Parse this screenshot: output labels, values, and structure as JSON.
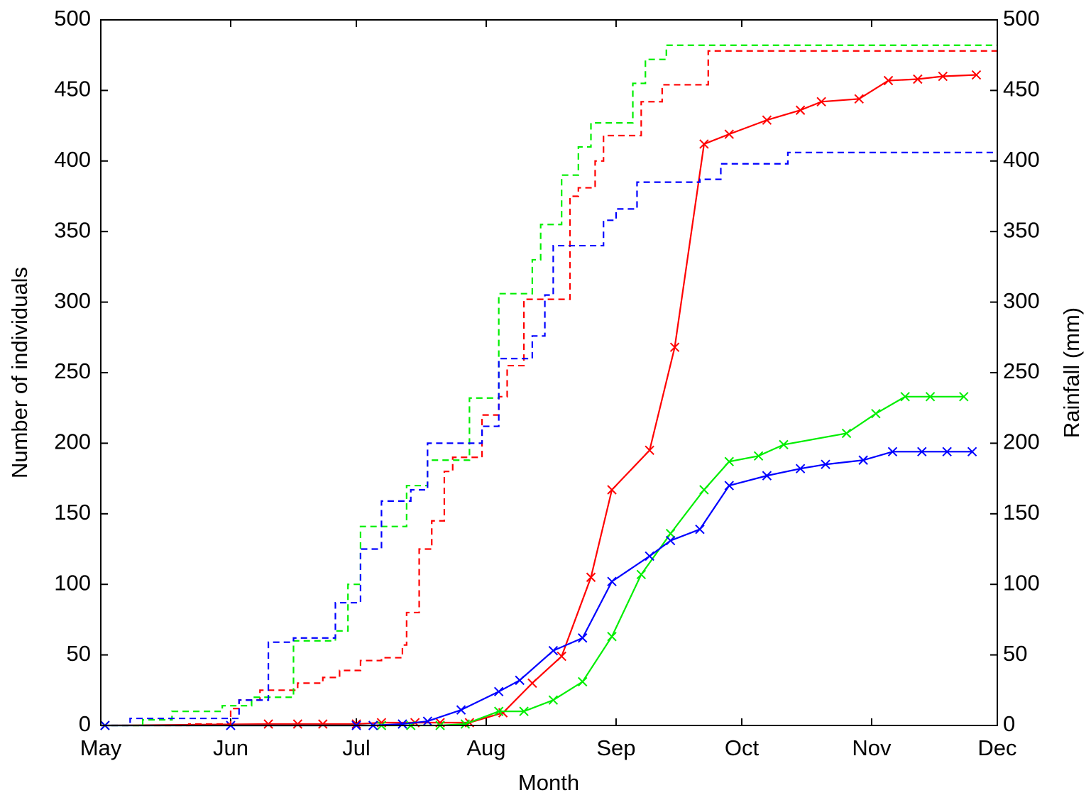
{
  "chart_data": {
    "type": "line",
    "xlabel": "Month",
    "ylabel": "Number of individuals",
    "y2label": "Rainfall (mm)",
    "xlim": [
      0,
      214
    ],
    "xticks": [
      {
        "value": 0,
        "label": "May"
      },
      {
        "value": 31,
        "label": "Jun"
      },
      {
        "value": 61,
        "label": "Jul"
      },
      {
        "value": 92,
        "label": "Aug"
      },
      {
        "value": 123,
        "label": "Sep"
      },
      {
        "value": 153,
        "label": "Oct"
      },
      {
        "value": 184,
        "label": "Nov"
      },
      {
        "value": 214,
        "label": "Dec"
      }
    ],
    "ylim": [
      0,
      500
    ],
    "yticks": [
      0,
      50,
      100,
      150,
      200,
      250,
      300,
      350,
      400,
      450,
      500
    ],
    "y2lim": [
      0,
      500
    ],
    "y2ticks": [
      0,
      50,
      100,
      150,
      200,
      250,
      300,
      350,
      400,
      450,
      500
    ],
    "series": [
      {
        "color": "#ff0000",
        "linestyle": "solid",
        "marker": "x",
        "x": [
          1,
          40,
          47,
          53,
          61,
          67,
          75,
          81,
          88,
          96,
          103,
          110,
          117,
          122,
          131,
          137,
          144,
          150,
          159,
          167,
          172,
          181,
          188,
          195,
          201,
          209
        ],
        "values": [
          0,
          1,
          1,
          1,
          1,
          2,
          2,
          2,
          2,
          9,
          30,
          49,
          105,
          167,
          195,
          268,
          412,
          419,
          429,
          436,
          442,
          444,
          457,
          458,
          460,
          461
        ]
      },
      {
        "color": "#00ee00",
        "linestyle": "solid",
        "marker": "x",
        "x": [
          1,
          67,
          74,
          81,
          87,
          95,
          101,
          108,
          115,
          122,
          129,
          136,
          144,
          150,
          157,
          163,
          178,
          185,
          192,
          198,
          206
        ],
        "values": [
          0,
          0,
          0,
          0,
          1,
          10,
          10,
          18,
          31,
          63,
          107,
          136,
          167,
          187,
          191,
          199,
          207,
          221,
          233,
          233,
          233
        ]
      },
      {
        "color": "#0000ff",
        "linestyle": "solid",
        "marker": "x",
        "x": [
          1,
          31,
          61,
          65,
          72,
          78,
          86,
          95,
          100,
          108,
          115,
          122,
          131,
          136,
          143,
          150,
          159,
          167,
          173,
          182,
          189,
          196,
          202,
          208
        ],
        "values": [
          0,
          0,
          0,
          0,
          1,
          3,
          11,
          24,
          32,
          53,
          62,
          102,
          120,
          131,
          139,
          170,
          177,
          182,
          185,
          188,
          194,
          194,
          194,
          194
        ]
      },
      {
        "color": "#ff0000",
        "linestyle": "dashed",
        "drawstyle": "steps-post",
        "axis": "y2",
        "x": [
          0,
          21,
          31,
          33,
          38,
          47,
          53,
          57,
          62,
          67,
          72,
          73,
          76,
          79,
          82,
          84,
          91,
          95,
          97,
          101,
          112,
          114,
          118,
          120,
          129,
          134,
          145,
          214
        ],
        "values": [
          0,
          1,
          12,
          18,
          25,
          30,
          34,
          39,
          46,
          48,
          57,
          80,
          125,
          145,
          180,
          190,
          220,
          233,
          255,
          302,
          375,
          381,
          400,
          418,
          442,
          454,
          478,
          478
        ]
      },
      {
        "color": "#00ee00",
        "linestyle": "dashed",
        "drawstyle": "steps-post",
        "axis": "y2",
        "x": [
          0,
          10,
          17,
          29,
          36,
          46,
          56,
          59,
          62,
          73,
          78,
          88,
          95,
          103,
          105,
          110,
          114,
          117,
          127,
          130,
          135,
          214
        ],
        "values": [
          0,
          4,
          10,
          14,
          20,
          60,
          67,
          100,
          141,
          170,
          188,
          232,
          306,
          330,
          355,
          390,
          410,
          427,
          455,
          472,
          482,
          482
        ]
      },
      {
        "color": "#0000ff",
        "linestyle": "dashed",
        "drawstyle": "steps-post",
        "axis": "y2",
        "x": [
          0,
          7,
          33,
          40,
          46,
          56,
          62,
          67,
          74,
          78,
          91,
          95,
          103,
          106,
          108,
          120,
          123,
          128,
          143,
          148,
          164,
          214
        ],
        "values": [
          0,
          5,
          18,
          59,
          62,
          87,
          125,
          159,
          167,
          200,
          212,
          260,
          276,
          305,
          340,
          358,
          366,
          385,
          387,
          398,
          406,
          406
        ]
      }
    ]
  }
}
